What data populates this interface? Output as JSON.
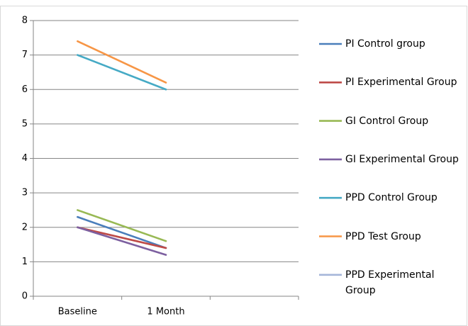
{
  "chart_data": {
    "type": "line",
    "categories": [
      "Baseline",
      "1 Month",
      null
    ],
    "series": [
      {
        "name": "PI Control group",
        "color": "#4a7ebb",
        "values": [
          2.3,
          1.4,
          null
        ]
      },
      {
        "name": "PI Experimental Group",
        "color": "#be4b48",
        "values": [
          2.0,
          1.4,
          null
        ]
      },
      {
        "name": "GI Control Group",
        "color": "#98b954",
        "values": [
          2.5,
          1.6,
          null
        ]
      },
      {
        "name": "GI Experimental Group",
        "color": "#7d60a0",
        "values": [
          2.0,
          1.2,
          null
        ]
      },
      {
        "name": "PPD Control Group",
        "color": "#46aac5",
        "values": [
          7.0,
          6.0,
          null
        ]
      },
      {
        "name": "PPD Test Group",
        "color": "#f79646",
        "values": [
          7.4,
          6.2,
          null
        ]
      },
      {
        "name": "PPD Experimental Group",
        "color": "#a5b6d9",
        "values": [
          null,
          null,
          null
        ]
      }
    ],
    "ylim": [
      0,
      8
    ],
    "yticks": [
      0,
      1,
      2,
      3,
      4,
      5,
      6,
      7,
      8
    ],
    "grid": true,
    "legend": "right"
  }
}
